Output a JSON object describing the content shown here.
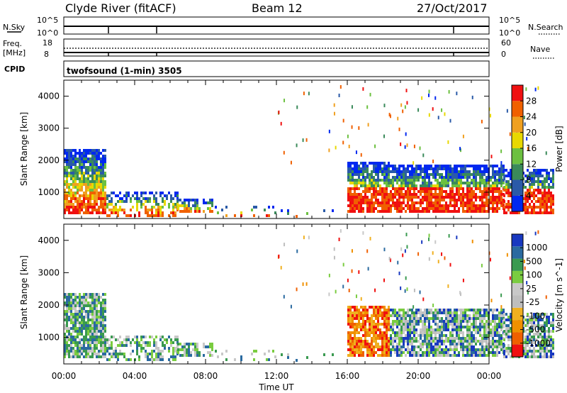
{
  "header": {
    "station": "Clyde River (fitACF)",
    "beam": "Beam 12",
    "date": "27/Oct/2017"
  },
  "aux": {
    "nsky_label": "N.Sky",
    "nsky_ticks": [
      "10^5",
      "10^0"
    ],
    "nsearch_label": "N.Search",
    "freq_label_line1": "Freq.",
    "freq_label_line2": "[MHz]",
    "freq_ticks": [
      "18",
      "8"
    ],
    "nave_label": "Nave",
    "nave_ticks": [
      "60",
      "0"
    ],
    "cpid_label": "CPID",
    "cpid_text": "twofsound (1-min) 3505"
  },
  "colors": {
    "power": [
      "#0028f0",
      "#2a5aa8",
      "#3a8a5a",
      "#6cc040",
      "#e8d800",
      "#f0a020",
      "#f06000",
      "#f01010"
    ],
    "velocity": [
      "#f01010",
      "#f06000",
      "#f09000",
      "#f0b020",
      "#bebebe",
      "#c8c8c8",
      "#7acc40",
      "#3a9a50",
      "#2a6aa0",
      "#1838c0"
    ]
  },
  "chart_data": [
    {
      "type": "heatmap",
      "title": "",
      "ylabel": "Slant Range [km]",
      "xlabel": "Time UT",
      "xlim": [
        "00:00",
        "00:00"
      ],
      "x_ticks": [
        "00:00",
        "04:00",
        "08:00",
        "12:00",
        "16:00",
        "20:00",
        "00:00"
      ],
      "ylim": [
        180,
        4500
      ],
      "y_ticks": [
        1000,
        2000,
        3000,
        4000
      ],
      "colorbar": {
        "label": "Power [dB]",
        "ticks": [
          "4",
          "8",
          "12",
          "16",
          "20",
          "24",
          "28"
        ],
        "range": [
          0,
          30
        ]
      }
    },
    {
      "type": "heatmap",
      "title": "",
      "ylabel": "Slant Range [km]",
      "xlabel": "Time UT",
      "xlim": [
        "00:00",
        "00:00"
      ],
      "x_ticks": [
        "00:00",
        "04:00",
        "08:00",
        "12:00",
        "16:00",
        "20:00",
        "00:00"
      ],
      "ylim": [
        180,
        4500
      ],
      "y_ticks": [
        1000,
        2000,
        3000,
        4000
      ],
      "colorbar": {
        "label": "Velocity [m s^-1]",
        "ticks": [
          "1000",
          "500",
          "100",
          "25",
          "-25",
          "-100",
          "-500",
          "-1000"
        ]
      }
    }
  ]
}
